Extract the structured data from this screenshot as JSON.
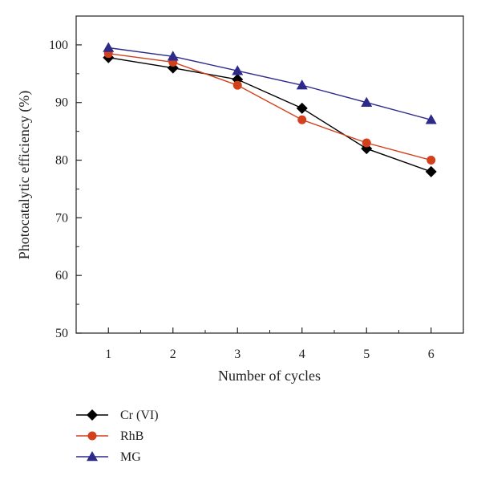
{
  "chart_data": {
    "type": "line",
    "title": "",
    "xlabel": "Number of cycles",
    "ylabel": "Photocatalytic efficiency (%)",
    "x": [
      1,
      2,
      3,
      4,
      5,
      6
    ],
    "xlim": [
      0.5,
      6.5
    ],
    "ylim": [
      50,
      105
    ],
    "xticks": [
      1,
      2,
      3,
      4,
      5,
      6
    ],
    "yticks": [
      50,
      60,
      70,
      80,
      90,
      100
    ],
    "grid": false,
    "legend_position": "bottom-left",
    "series": [
      {
        "name": "Cr (VI)",
        "values": [
          97.8,
          96.0,
          94.0,
          89.0,
          82.0,
          78.0
        ],
        "color": "#000000",
        "marker": "diamond"
      },
      {
        "name": "RhB",
        "values": [
          98.5,
          97.0,
          93.0,
          87.0,
          83.0,
          80.0
        ],
        "color": "#d2401c",
        "marker": "circle"
      },
      {
        "name": "MG",
        "values": [
          99.5,
          98.0,
          95.5,
          93.0,
          90.0,
          87.0
        ],
        "color": "#2e2a8a",
        "marker": "triangle"
      }
    ]
  }
}
